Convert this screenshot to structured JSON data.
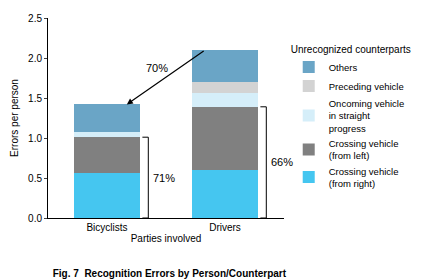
{
  "chart_data": {
    "type": "bar",
    "title": "Fig. 7  Recognition Errors by Person/Counterpart",
    "x_label": "Parties involved",
    "y_label": "Errors per person",
    "legend_title": "Unrecognized counterparts",
    "categories": [
      "Bicyclists",
      "Drivers"
    ],
    "series": [
      {
        "name": "Crossing vehicle (from right)",
        "color": "#45c6f0",
        "values": [
          0.56,
          0.6
        ]
      },
      {
        "name": "Crossing vehicle (from left)",
        "color": "#808080",
        "values": [
          0.45,
          0.79
        ]
      },
      {
        "name": "Oncoming vehicle in straight progress",
        "color": "#d5eef9",
        "values": [
          0.07,
          0.17
        ]
      },
      {
        "name": "Preceding vehicle",
        "color": "#d3d3d3",
        "values": [
          0,
          0.14
        ]
      },
      {
        "name": "Others",
        "color": "#6aa5c6",
        "values": [
          0.34,
          0.4
        ]
      }
    ],
    "annotations": [
      "70%",
      "71%",
      "66%"
    ],
    "ylim": [
      0,
      2.5
    ],
    "yticks": [
      {
        "value": 0,
        "label": "0.0"
      },
      0.5,
      {
        "value": 1,
        "label": "1.0"
      },
      1.5,
      {
        "value": 2,
        "label": "2.0"
      },
      2.5
    ],
    "stacked": true,
    "grid": false,
    "legend": "right",
    "data_labels": false
  }
}
